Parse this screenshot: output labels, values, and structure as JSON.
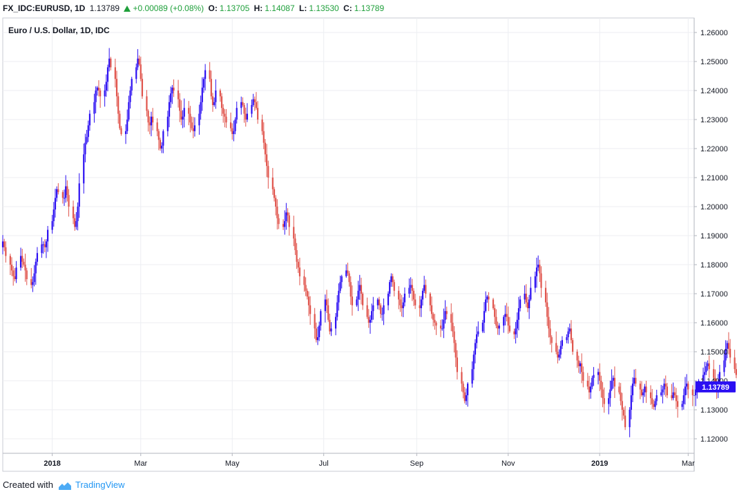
{
  "header": {
    "symbol": "FX_IDC:EURUSD, 1D",
    "price": "1.13789",
    "change": "+0.00089 (+0.08%)",
    "open_label": "O:",
    "open": "1.13705",
    "high_label": "H:",
    "high": "1.14087",
    "low_label": "L:",
    "low": "1.13530",
    "close_label": "C:",
    "close": "1.13789"
  },
  "footer": {
    "created_with": "Created with",
    "brand": "TradingView"
  },
  "colors": {
    "up": "#2b0ff2",
    "down": "#e0544c",
    "grid": "#eceef2",
    "axis": "#b2b5be",
    "price_tag": "#2b0ff2"
  },
  "chart_data": {
    "type": "candlestick",
    "title": "Euro / U.S. Dollar, 1D, IDC",
    "xlabel": "",
    "ylabel": "",
    "ylim": [
      1.115,
      1.265
    ],
    "y_ticks": [
      "1.12000",
      "1.13000",
      "1.14000",
      "1.15000",
      "1.16000",
      "1.17000",
      "1.18000",
      "1.19000",
      "1.20000",
      "1.21000",
      "1.22000",
      "1.23000",
      "1.24000",
      "1.25000",
      "1.26000"
    ],
    "x_range": [
      "2017-11-29",
      "2019-03-05"
    ],
    "x_ticks": [
      {
        "date": "2018-01-01",
        "label": "2018",
        "bold": true
      },
      {
        "date": "2018-03-01",
        "label": "Mar",
        "bold": false
      },
      {
        "date": "2018-05-01",
        "label": "May",
        "bold": false
      },
      {
        "date": "2018-07-01",
        "label": "Jul",
        "bold": false
      },
      {
        "date": "2018-09-01",
        "label": "Sep",
        "bold": false
      },
      {
        "date": "2018-11-01",
        "label": "Nov",
        "bold": false
      },
      {
        "date": "2019-01-01",
        "label": "2019",
        "bold": true
      },
      {
        "date": "2019-03-01",
        "label": "Mar",
        "bold": false
      }
    ],
    "last_price": 1.13789,
    "last_price_label": "1.13789",
    "grid": true,
    "start_date": "2017-11-29",
    "closes": [
      1.188,
      1.186,
      1.183,
      1.18,
      1.178,
      1.176,
      1.175,
      1.179,
      1.183,
      1.181,
      1.18,
      1.178,
      1.175,
      1.173,
      1.174,
      1.177,
      1.181,
      1.184,
      1.187,
      1.187,
      1.186,
      1.188,
      1.192,
      1.195,
      1.199,
      1.203,
      1.206,
      1.205,
      1.203,
      1.203,
      1.207,
      1.204,
      1.2,
      1.196,
      1.193,
      1.195,
      1.2,
      1.208,
      1.218,
      1.222,
      1.224,
      1.228,
      1.232,
      1.236,
      1.24,
      1.241,
      1.24,
      1.238,
      1.24,
      1.243,
      1.248,
      1.251,
      1.248,
      1.244,
      1.238,
      1.232,
      1.227,
      1.225,
      1.226,
      1.23,
      1.236,
      1.24,
      1.244,
      1.248,
      1.251,
      1.249,
      1.244,
      1.238,
      1.233,
      1.229,
      1.228,
      1.231,
      1.229,
      1.226,
      1.223,
      1.22,
      1.221,
      1.226,
      1.231,
      1.236,
      1.239,
      1.241,
      1.24,
      1.237,
      1.233,
      1.23,
      1.231,
      1.234,
      1.232,
      1.229,
      1.227,
      1.226,
      1.228,
      1.232,
      1.236,
      1.241,
      1.244,
      1.247,
      1.244,
      1.238,
      1.235,
      1.236,
      1.24,
      1.238,
      1.234,
      1.232,
      1.231,
      1.229,
      1.227,
      1.225,
      1.226,
      1.23,
      1.234,
      1.236,
      1.235,
      1.232,
      1.23,
      1.232,
      1.235,
      1.237,
      1.236,
      1.234,
      1.23,
      1.226,
      1.222,
      1.218,
      1.214,
      1.21,
      1.206,
      1.203,
      1.2,
      1.196,
      1.194,
      1.193,
      1.195,
      1.198,
      1.197,
      1.193,
      1.189,
      1.185,
      1.181,
      1.179,
      1.176,
      1.173,
      1.171,
      1.169,
      1.166,
      1.163,
      1.158,
      1.154,
      1.155,
      1.159,
      1.164,
      1.168,
      1.166,
      1.161,
      1.157,
      1.158,
      1.162,
      1.167,
      1.171,
      1.174,
      1.176,
      1.178,
      1.177,
      1.174,
      1.169,
      1.166,
      1.168,
      1.171,
      1.173,
      1.17,
      1.166,
      1.162,
      1.16,
      1.161,
      1.164,
      1.166,
      1.168,
      1.166,
      1.163,
      1.163,
      1.166,
      1.17,
      1.174,
      1.176,
      1.174,
      1.171,
      1.168,
      1.166,
      1.165,
      1.167,
      1.17,
      1.172,
      1.173,
      1.171,
      1.168,
      1.166,
      1.165,
      1.168,
      1.171,
      1.173,
      1.17,
      1.166,
      1.163,
      1.161,
      1.16,
      1.159,
      1.158,
      1.158,
      1.161,
      1.164,
      1.163,
      1.16,
      1.157,
      1.153,
      1.148,
      1.143,
      1.139,
      1.136,
      1.133,
      1.135,
      1.139,
      1.144,
      1.149,
      1.153,
      1.156,
      1.157,
      1.16,
      1.164,
      1.168,
      1.169,
      1.168,
      1.165,
      1.162,
      1.159,
      1.158,
      1.159,
      1.162,
      1.163,
      1.162,
      1.159,
      1.157,
      1.156,
      1.158,
      1.161,
      1.165,
      1.168,
      1.17,
      1.167,
      1.165,
      1.168,
      1.172,
      1.176,
      1.179,
      1.18,
      1.177,
      1.172,
      1.167,
      1.162,
      1.158,
      1.155,
      1.153,
      1.15,
      1.148,
      1.149,
      1.152,
      1.154,
      1.155,
      1.157,
      1.158,
      1.154,
      1.15,
      1.147,
      1.145,
      1.146,
      1.143,
      1.14,
      1.138,
      1.136,
      1.138,
      1.141,
      1.142,
      1.143,
      1.14,
      1.137,
      1.134,
      1.132,
      1.134,
      1.137,
      1.14,
      1.141,
      1.138,
      1.136,
      1.133,
      1.13,
      1.128,
      1.124,
      1.13,
      1.135,
      1.139,
      1.141,
      1.139,
      1.137,
      1.135,
      1.136,
      1.138,
      1.136,
      1.134,
      1.132,
      1.131,
      1.133,
      1.135,
      1.136,
      1.137,
      1.139,
      1.138,
      1.135,
      1.134,
      1.136,
      1.135,
      1.133,
      1.131,
      1.132,
      1.135,
      1.138,
      1.139,
      1.137,
      1.135,
      1.135,
      1.137,
      1.138,
      1.14,
      1.142,
      1.143,
      1.145,
      1.146,
      1.144,
      1.141,
      1.137,
      1.136,
      1.139,
      1.143,
      1.147,
      1.151,
      1.153,
      1.151,
      1.148,
      1.144,
      1.142,
      1.14,
      1.139,
      1.138,
      1.137,
      1.136,
      1.135,
      1.134,
      1.135,
      1.137,
      1.14,
      1.142,
      1.144,
      1.146,
      1.148,
      1.147,
      1.144,
      1.141,
      1.138,
      1.135,
      1.133,
      1.132,
      1.131,
      1.129,
      1.127,
      1.126,
      1.127,
      1.129,
      1.131,
      1.132,
      1.133,
      1.134,
      1.135,
      1.136,
      1.137,
      1.138,
      1.1379
    ]
  }
}
